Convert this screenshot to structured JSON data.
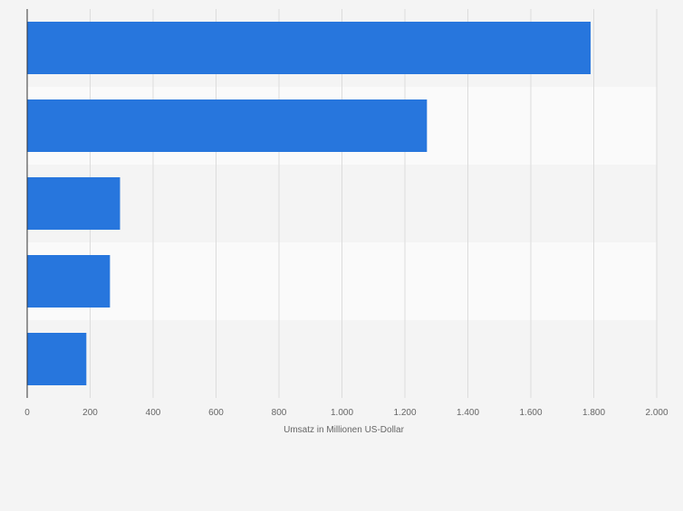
{
  "chart_data": {
    "type": "bar",
    "orientation": "horizontal",
    "categories": [
      "",
      "",
      "",
      "",
      ""
    ],
    "values": [
      1790,
      1270,
      295,
      263,
      188
    ],
    "title": "",
    "xlabel": "Umsatz in Millionen US-Dollar",
    "ylabel": "",
    "xlim": [
      0,
      2000
    ],
    "x_ticks": [
      0,
      200,
      400,
      600,
      800,
      1000,
      1200,
      1400,
      1600,
      1800,
      2000
    ],
    "x_tick_labels": [
      "0",
      "200",
      "400",
      "600",
      "800",
      "1.000",
      "1.200",
      "1.400",
      "1.600",
      "1.800",
      "2.000"
    ],
    "grid": "vertical",
    "legend": "none",
    "bar_color": "#2776dd",
    "band_colors": [
      "#f4f4f4",
      "#fafafa"
    ],
    "background_color": "#f4f4f4",
    "gridline_color": "#dcdcdc",
    "axis_color": "#333333",
    "tick_label_color": "#666666"
  }
}
